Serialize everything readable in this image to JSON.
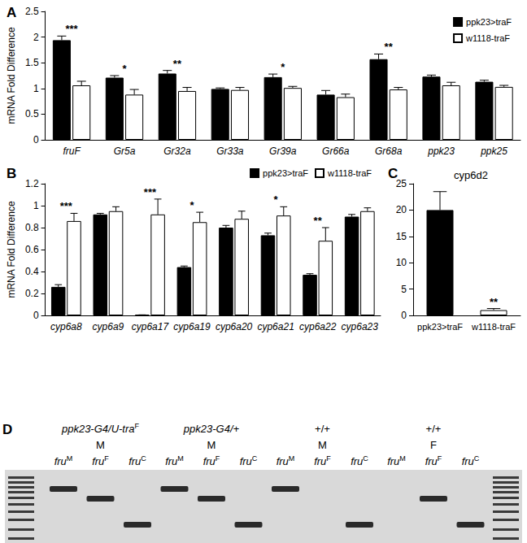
{
  "chart_data": [
    {
      "type": "bar",
      "panel": "A",
      "y_label": "mRNA Fold Difference",
      "categories": [
        "fruF",
        "Gr5a",
        "Gr32a",
        "Gr33a",
        "Gr39a",
        "Gr66a",
        "Gr68a",
        "ppk23",
        "ppk25"
      ],
      "series": [
        {
          "name": "ppk23>traF",
          "color": "#000000",
          "values": [
            1.94,
            1.21,
            1.29,
            0.99,
            1.22,
            0.88,
            1.57,
            1.23,
            1.13
          ],
          "errors": [
            0.08,
            0.04,
            0.06,
            0.02,
            0.06,
            0.08,
            0.1,
            0.03,
            0.03
          ]
        },
        {
          "name": "w1118-traF",
          "color": "#ffffff",
          "values": [
            1.06,
            0.88,
            0.95,
            0.97,
            1.01,
            0.83,
            0.98,
            1.06,
            1.03
          ],
          "errors": [
            0.08,
            0.1,
            0.07,
            0.05,
            0.03,
            0.06,
            0.04,
            0.06,
            0.03
          ]
        }
      ],
      "annotations": [
        {
          "category": "fruF",
          "text": "***"
        },
        {
          "category": "Gr5a",
          "text": "*"
        },
        {
          "category": "Gr32a",
          "text": "**"
        },
        {
          "category": "Gr39a",
          "text": "*"
        },
        {
          "category": "Gr68a",
          "text": "**"
        }
      ],
      "ylim": [
        0,
        2.5
      ],
      "yticks": [
        0,
        0.5,
        1,
        1.5,
        2,
        2.5
      ],
      "grid": false,
      "legend": "upper right"
    },
    {
      "type": "bar",
      "panel": "B",
      "y_label": "mRNA Fold Difference",
      "categories": [
        "cyp6a8",
        "cyp6a9",
        "cyp6a17",
        "cyp6a19",
        "cyp6a20",
        "cyp6a21",
        "cyp6a22",
        "cyp6a23"
      ],
      "series": [
        {
          "name": "ppk23>traF",
          "color": "#000000",
          "values": [
            0.26,
            0.92,
            0.005,
            0.44,
            0.8,
            0.73,
            0.37,
            0.9
          ],
          "errors": [
            0.02,
            0.01,
            0,
            0.01,
            0.02,
            0.02,
            0.01,
            0.02
          ]
        },
        {
          "name": "w1118-traF",
          "color": "#ffffff",
          "values": [
            0.86,
            0.95,
            0.92,
            0.85,
            0.88,
            0.91,
            0.68,
            0.95
          ],
          "errors": [
            0.07,
            0.04,
            0.14,
            0.09,
            0.07,
            0.08,
            0.12,
            0.03
          ]
        }
      ],
      "annotations": [
        {
          "category": "cyp6a8",
          "text": "***"
        },
        {
          "category": "cyp6a17",
          "text": "***"
        },
        {
          "category": "cyp6a19",
          "text": "*"
        },
        {
          "category": "cyp6a21",
          "text": "*"
        },
        {
          "category": "cyp6a22",
          "text": "**"
        }
      ],
      "ylim": [
        0,
        1.2
      ],
      "yticks": [
        0,
        0.2,
        0.4,
        0.6,
        0.8,
        1,
        1.2
      ],
      "grid": false,
      "legend": "upper right"
    },
    {
      "type": "bar",
      "panel": "C",
      "title": "cyp6d2",
      "categories": [
        "ppk23>traF",
        "w1118-traF"
      ],
      "values": [
        20,
        1
      ],
      "errors": [
        3.5,
        0.3
      ],
      "colors": [
        "#000000",
        "#ffffff"
      ],
      "annotations": [
        {
          "category": "w1118-traF",
          "text": "**"
        }
      ],
      "ylim": [
        0,
        25
      ],
      "yticks": [
        0,
        5,
        10,
        15,
        20,
        25
      ],
      "grid": false
    }
  ],
  "gel": {
    "panel": "D",
    "groups": [
      {
        "genotype": "ppk23-G4/U-tra",
        "genotype_sup": "F",
        "sex": "M",
        "lanes": [
          {
            "name": "fru",
            "sup": "M",
            "band": true
          },
          {
            "name": "fru",
            "sup": "F",
            "band": true
          },
          {
            "name": "fru",
            "sup": "C",
            "band": true
          }
        ]
      },
      {
        "genotype": "ppk23-G4/+",
        "sex": "M",
        "lanes": [
          {
            "name": "fru",
            "sup": "M",
            "band": true
          },
          {
            "name": "fru",
            "sup": "F",
            "band": true
          },
          {
            "name": "fru",
            "sup": "C",
            "band": true
          }
        ]
      },
      {
        "genotype": "+/+",
        "sex": "M",
        "lanes": [
          {
            "name": "fru",
            "sup": "M",
            "band": true
          },
          {
            "name": "fru",
            "sup": "F",
            "band": false
          },
          {
            "name": "fru",
            "sup": "C",
            "band": true
          }
        ]
      },
      {
        "genotype": "+/+",
        "sex": "F",
        "lanes": [
          {
            "name": "fru",
            "sup": "M",
            "band": false
          },
          {
            "name": "fru",
            "sup": "F",
            "band": true
          },
          {
            "name": "fru",
            "sup": "C",
            "band": true
          }
        ]
      }
    ]
  }
}
